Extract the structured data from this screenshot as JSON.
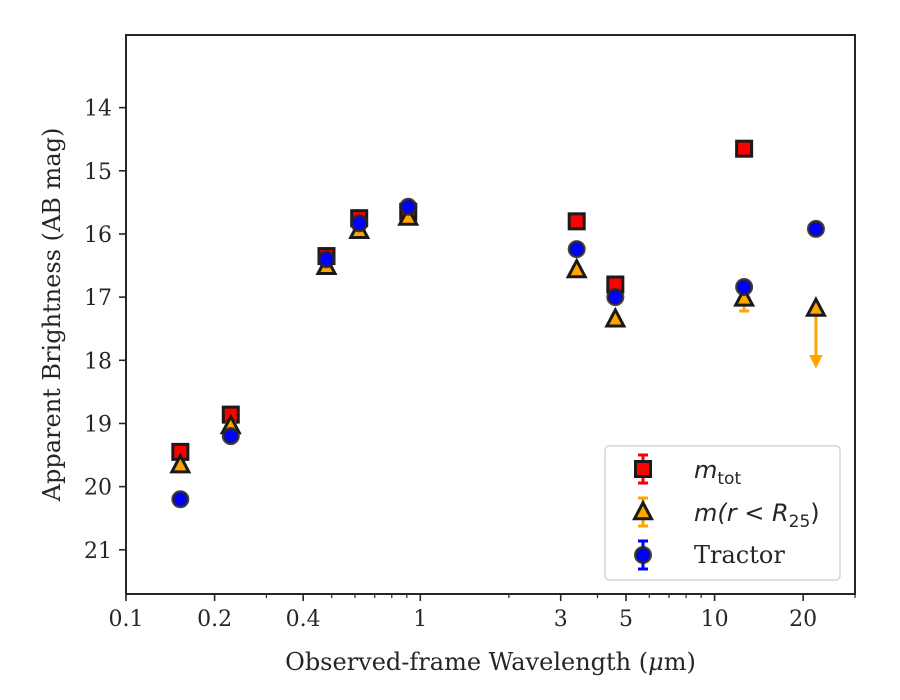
{
  "chart_data": {
    "type": "scatter",
    "xlabel_prefix": "Observed-frame Wavelength (",
    "xlabel_unit_mu": "μ",
    "xlabel_suffix": "m)",
    "ylabel": "Apparent Brightness (AB mag)",
    "xscale": "log",
    "xlim": [
      0.1,
      30
    ],
    "ylim": [
      21.7,
      12.85
    ],
    "y_inverted": true,
    "grid": false,
    "legend_position": "lower-right",
    "x_ticks": [
      {
        "value": 0.1,
        "label": "0.1"
      },
      {
        "value": 0.2,
        "label": "0.2"
      },
      {
        "value": 0.4,
        "label": "0.4"
      },
      {
        "value": 1,
        "label": "1"
      },
      {
        "value": 3,
        "label": "3"
      },
      {
        "value": 5,
        "label": "5"
      },
      {
        "value": 10,
        "label": "10"
      },
      {
        "value": 20,
        "label": "20"
      }
    ],
    "y_ticks": [
      {
        "value": 14,
        "label": "14"
      },
      {
        "value": 15,
        "label": "15"
      },
      {
        "value": 16,
        "label": "16"
      },
      {
        "value": 17,
        "label": "17"
      },
      {
        "value": 18,
        "label": "18"
      },
      {
        "value": 19,
        "label": "19"
      },
      {
        "value": 20,
        "label": "20"
      },
      {
        "value": 21,
        "label": "21"
      }
    ],
    "series": [
      {
        "name": "m_tot",
        "legend_main": "m",
        "legend_sub": "tot",
        "marker": "square",
        "color": "#ff0000",
        "edge_color": "#1a1a1a",
        "points": [
          {
            "x": 0.153,
            "y": 19.45,
            "err": 0.05
          },
          {
            "x": 0.227,
            "y": 18.86,
            "err": 0.05
          },
          {
            "x": 0.48,
            "y": 16.35,
            "err": 0.05
          },
          {
            "x": 0.62,
            "y": 15.75,
            "err": 0.05
          },
          {
            "x": 0.91,
            "y": 15.65,
            "err": 0.05
          },
          {
            "x": 3.4,
            "y": 15.8,
            "err": 0.05
          },
          {
            "x": 4.6,
            "y": 16.8,
            "err": 0.05
          },
          {
            "x": 12.6,
            "y": 14.65,
            "err": 0.05
          }
        ]
      },
      {
        "name": "m(r<R25)",
        "legend_main": "m(r < R",
        "legend_sub": "25",
        "legend_close": ")",
        "marker": "triangle",
        "color": "#ffa500",
        "edge_color": "#1a1a1a",
        "points": [
          {
            "x": 0.153,
            "y": 19.66,
            "err": 0.05
          },
          {
            "x": 0.227,
            "y": 19.04,
            "err": 0.05
          },
          {
            "x": 0.48,
            "y": 16.52,
            "err": 0.05
          },
          {
            "x": 0.62,
            "y": 15.95,
            "err": 0.05
          },
          {
            "x": 0.91,
            "y": 15.74,
            "err": 0.05
          },
          {
            "x": 3.4,
            "y": 16.57,
            "err": 0.05
          },
          {
            "x": 4.6,
            "y": 17.35,
            "err": 0.05
          },
          {
            "x": 12.6,
            "y": 17.02,
            "err": 0.2
          },
          {
            "x": 22.1,
            "y": 17.18,
            "upper_limit": true,
            "arrow_to": 18.05
          }
        ]
      },
      {
        "name": "Tractor",
        "legend_main": "Tractor",
        "marker": "circle",
        "color": "#0000ff",
        "edge_color": "#262626",
        "points": [
          {
            "x": 0.153,
            "y": 20.2,
            "err": 0.08
          },
          {
            "x": 0.227,
            "y": 19.2,
            "err": 0.05
          },
          {
            "x": 0.48,
            "y": 16.4,
            "err": 0.05
          },
          {
            "x": 0.62,
            "y": 15.83,
            "err": 0.05
          },
          {
            "x": 0.91,
            "y": 15.57,
            "err": 0.05
          },
          {
            "x": 3.4,
            "y": 16.24,
            "err": 0.05
          },
          {
            "x": 4.6,
            "y": 17.0,
            "err": 0.05
          },
          {
            "x": 12.6,
            "y": 16.84,
            "err": 0.05
          },
          {
            "x": 22.1,
            "y": 15.92,
            "err": 0.05
          }
        ]
      }
    ]
  }
}
